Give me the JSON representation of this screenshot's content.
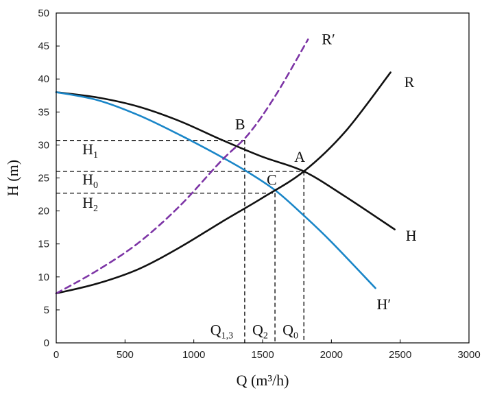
{
  "chart_data": {
    "type": "line",
    "title": "",
    "xlabel": "Q (m³/h)",
    "ylabel": "H (m)",
    "xlim": [
      0,
      3000
    ],
    "ylim": [
      0,
      50
    ],
    "xticks": [
      0,
      500,
      1000,
      1500,
      2000,
      2500,
      3000
    ],
    "yticks": [
      0,
      5,
      10,
      15,
      20,
      25,
      30,
      35,
      40,
      45,
      50
    ],
    "grid": false,
    "legend": "none",
    "series": [
      {
        "name": "H",
        "color": "#111111",
        "dash": "solid",
        "x": [
          0,
          300,
          600,
          900,
          1200,
          1500,
          1800,
          2100,
          2460
        ],
        "y": [
          38,
          37.2,
          35.8,
          33.6,
          30.8,
          28.2,
          26,
          22.2,
          17.2
        ]
      },
      {
        "name": "H′",
        "color": "#1a86c8",
        "dash": "solid",
        "x": [
          0,
          300,
          600,
          900,
          1200,
          1400,
          1600,
          1800,
          2000,
          2320
        ],
        "y": [
          38,
          36.8,
          34.5,
          31.5,
          28.2,
          25.8,
          23,
          19.3,
          15.3,
          8.3
        ]
      },
      {
        "name": "R",
        "color": "#111111",
        "dash": "solid",
        "x": [
          0,
          300,
          600,
          900,
          1200,
          1500,
          1800,
          2100,
          2430
        ],
        "y": [
          7.5,
          9,
          11.2,
          14.5,
          18.3,
          22,
          26,
          32,
          41
        ]
      },
      {
        "name": "R′",
        "color": "#7d35a6",
        "dash": "dashed",
        "x": [
          0,
          300,
          600,
          900,
          1200,
          1400,
          1600,
          1830
        ],
        "y": [
          7.5,
          11,
          15.2,
          20.8,
          27.6,
          31.7,
          37.7,
          46
        ]
      }
    ],
    "curve_labels": [
      {
        "text": "R′",
        "x": 1930,
        "y": 46
      },
      {
        "text": "R",
        "x": 2530,
        "y": 39.5
      },
      {
        "text": "H",
        "x": 2540,
        "y": 16.2
      },
      {
        "text": "H′",
        "x": 2330,
        "y": 5.8
      }
    ],
    "points": [
      {
        "label": "A",
        "x": 1800,
        "y": 26
      },
      {
        "label": "B",
        "x": 1370,
        "y": 30.7
      },
      {
        "label": "C",
        "x": 1590,
        "y": 22.7
      }
    ],
    "reference_lines": {
      "horizontal": [
        {
          "label": "H1",
          "main": "H",
          "sub": "1",
          "y": 30.7,
          "x_end": 1370,
          "label_x": 190,
          "label_y": 28.6
        },
        {
          "label": "H0",
          "main": "H",
          "sub": "0",
          "y": 26,
          "x_end": 1800,
          "label_x": 190,
          "label_y": 24.0
        },
        {
          "label": "H2",
          "main": "H",
          "sub": "2",
          "y": 22.7,
          "x_end": 1590,
          "label_x": 190,
          "label_y": 20.5
        }
      ],
      "vertical": [
        {
          "label": "Q1,3",
          "main": "Q",
          "sub": "1,3",
          "x": 1370,
          "y_end": 30.7,
          "label_x": 1120,
          "label_y": 1.2
        },
        {
          "label": "Q2",
          "main": "Q",
          "sub": "2",
          "x": 1590,
          "y_end": 22.7,
          "label_x": 1425,
          "label_y": 1.2
        },
        {
          "label": "Q0",
          "main": "Q",
          "sub": "0",
          "x": 1800,
          "y_end": 26,
          "label_x": 1645,
          "label_y": 1.2
        }
      ]
    }
  }
}
